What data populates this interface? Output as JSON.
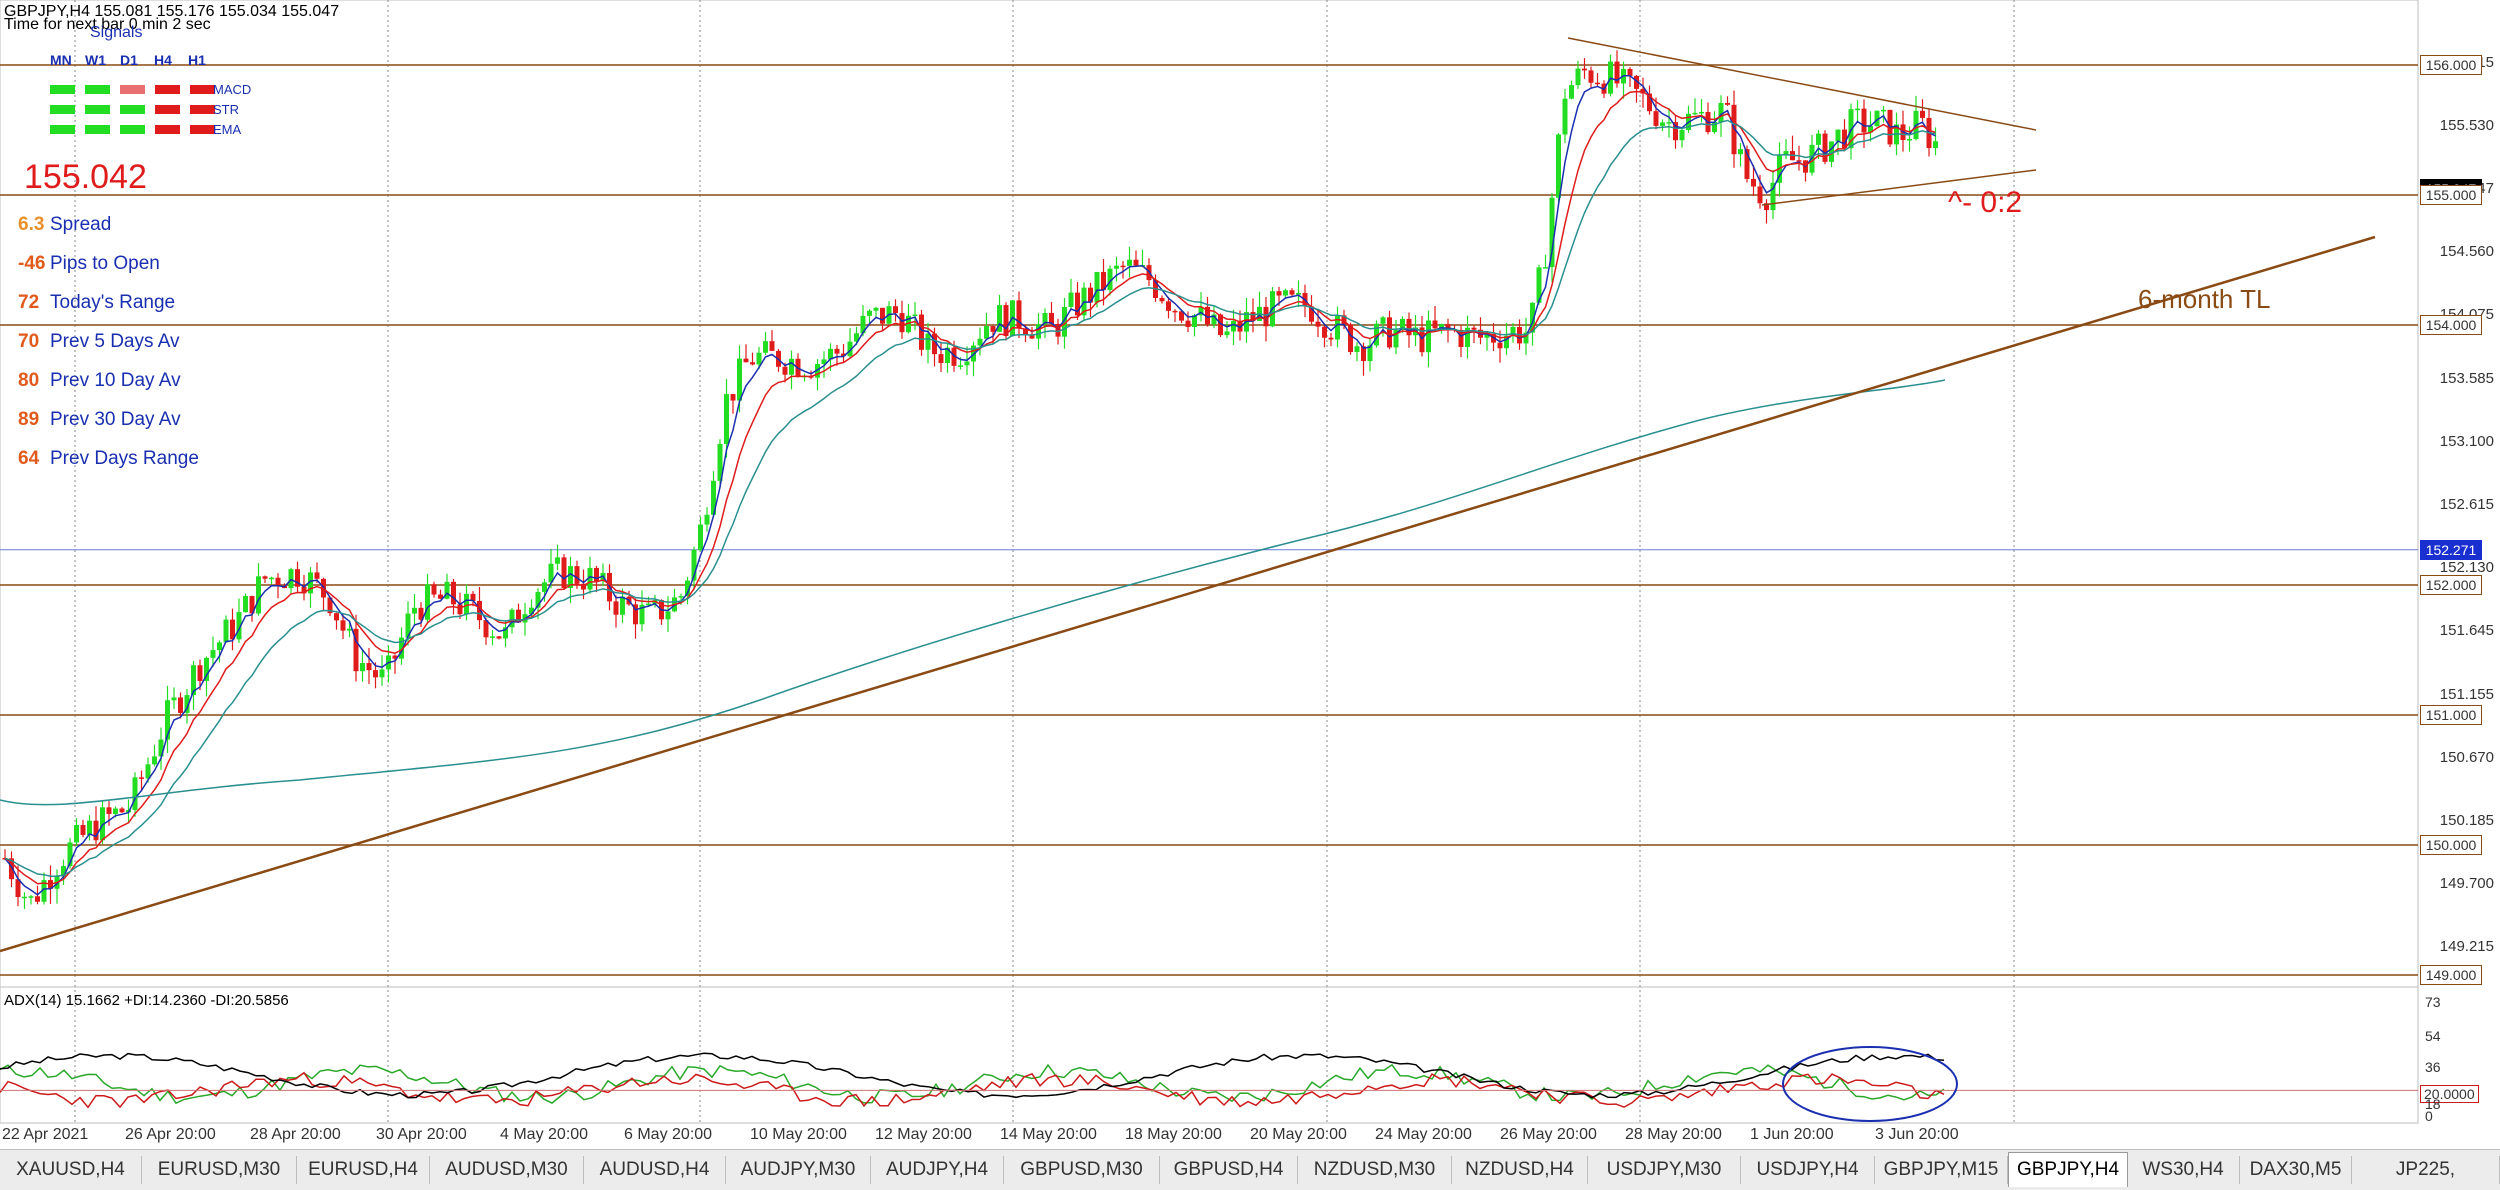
{
  "header": {
    "title_line": "GBPJPY,H4  155.081 155.176 155.034 155.047",
    "timer_line": "Time for next bar 0 min 2 sec"
  },
  "signals": {
    "title": "Signals",
    "columns": [
      "MN",
      "W1",
      "D1",
      "H4",
      "H1"
    ],
    "rows": [
      {
        "label": "MACD",
        "colors": [
          "#22dd22",
          "#22dd22",
          "#e87070",
          "#e01b1b",
          "#e01b1b"
        ]
      },
      {
        "label": "STR",
        "colors": [
          "#22dd22",
          "#22dd22",
          "#22dd22",
          "#e01b1b",
          "#e01b1b"
        ]
      },
      {
        "label": "EMA",
        "colors": [
          "#22dd22",
          "#22dd22",
          "#22dd22",
          "#e01b1b",
          "#e01b1b"
        ]
      }
    ]
  },
  "bid_display": "155.042",
  "stats": [
    {
      "value": "6.3",
      "label": "Spread",
      "color": "#e8902a"
    },
    {
      "value": "-46",
      "label": "Pips to Open",
      "color": "#e05a1b"
    },
    {
      "value": "72",
      "label": "Today's Range",
      "color": "#e05a1b"
    },
    {
      "value": "70",
      "label": "Prev 5 Days Av",
      "color": "#e05a1b"
    },
    {
      "value": "80",
      "label": "Prev 10 Day Av",
      "color": "#e05a1b"
    },
    {
      "value": "89",
      "label": "Prev 30 Day Av",
      "color": "#e05a1b"
    },
    {
      "value": "64",
      "label": "Prev Days Range",
      "color": "#e05a1b"
    }
  ],
  "price_axis": {
    "ticks": [
      "156.015",
      "155.530",
      "155.047",
      "154.560",
      "154.075",
      "153.585",
      "153.100",
      "152.615",
      "152.130",
      "151.645",
      "151.155",
      "150.670",
      "150.185",
      "149.700",
      "149.215"
    ],
    "boxed": [
      {
        "value": "156.000",
        "style": "level"
      },
      {
        "value": "155.047",
        "style": "bid"
      },
      {
        "value": "155.000",
        "style": "level"
      },
      {
        "value": "154.000",
        "style": "level"
      },
      {
        "value": "152.271",
        "style": "blue"
      },
      {
        "value": "152.000",
        "style": "level"
      },
      {
        "value": "151.000",
        "style": "level"
      },
      {
        "value": "150.000",
        "style": "level"
      },
      {
        "value": "149.000",
        "style": "level"
      }
    ]
  },
  "annotations": {
    "trendline_label": "6-month TL",
    "fib_note": "^- 0:2"
  },
  "indicator": {
    "label": "ADX(14) 15.1662 +DI:14.2360 -DI:20.5856",
    "ticks": [
      "73",
      "54",
      "36",
      "20.0000",
      "18",
      "0"
    ]
  },
  "time_axis": {
    "labels": [
      "22 Apr 2021",
      "26 Apr 20:00",
      "28 Apr 20:00",
      "30 Apr 20:00",
      "4 May 20:00",
      "6 May 20:00",
      "10 May 20:00",
      "12 May 20:00",
      "14 May 20:00",
      "18 May 20:00",
      "20 May 20:00",
      "24 May 20:00",
      "26 May 20:00",
      "28 May 20:00",
      "1 Jun 20:00",
      "3 Jun 20:00"
    ]
  },
  "tabs": [
    {
      "label": "XAUUSD,H4"
    },
    {
      "label": "EURUSD,M30"
    },
    {
      "label": "EURUSD,H4"
    },
    {
      "label": "AUDUSD,M30"
    },
    {
      "label": "AUDUSD,H4"
    },
    {
      "label": "AUDJPY,M30"
    },
    {
      "label": "AUDJPY,H4"
    },
    {
      "label": "GBPUSD,M30"
    },
    {
      "label": "GBPUSD,H4"
    },
    {
      "label": "NZDUSD,M30"
    },
    {
      "label": "NZDUSD,H4"
    },
    {
      "label": "USDJPY,M30"
    },
    {
      "label": "USDJPY,H4"
    },
    {
      "label": "GBPJPY,M15"
    },
    {
      "label": "GBPJPY,H4"
    },
    {
      "label": "WS30,H4"
    },
    {
      "label": "DAX30,M5"
    },
    {
      "label": "JP225,"
    }
  ],
  "colors": {
    "bull": "#22dd22",
    "bear": "#e01b1b",
    "level_line": "#8a4a14",
    "grid_dotted": "#8a8a8a",
    "ma_fast": "#1a2fb0",
    "ma_mid": "#e01b1b",
    "ma_slow": "#2a8f8f",
    "adx_main": "#000000",
    "adx_plus": "#2aa82a",
    "adx_minus": "#cc1a1a",
    "highlight_ellipse": "#1a2fb0"
  }
}
